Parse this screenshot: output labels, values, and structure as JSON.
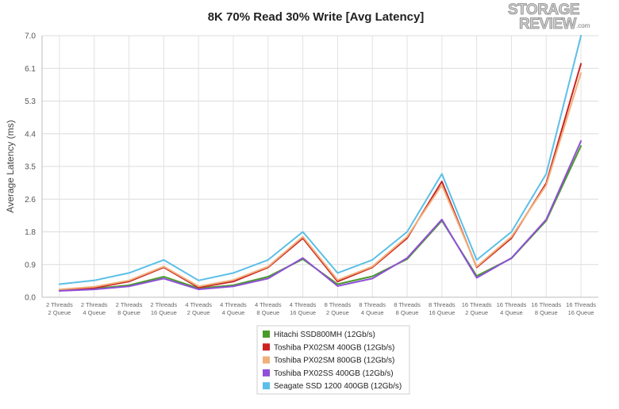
{
  "logo": {
    "line1": "STORAGE",
    "line2": "REVIEW",
    "suffix": ".com"
  },
  "chart_data": {
    "type": "line",
    "title": "8K 70% Read 30% Write [Avg Latency]",
    "xlabel": "",
    "ylabel": "Average Latency (ms)",
    "ylim": [
      0,
      7.0
    ],
    "yticks": [
      "0.0",
      "0.9",
      "1.8",
      "2.6",
      "3.5",
      "4.4",
      "5.3",
      "6.1",
      "7.0"
    ],
    "grid": true,
    "legend_position": "bottom-center",
    "categories": [
      [
        "2 Threads",
        "2 Queue"
      ],
      [
        "2 Threads",
        "4 Queue"
      ],
      [
        "2 Threads",
        "8 Queue"
      ],
      [
        "2 Threads",
        "16 Queue"
      ],
      [
        "4 Threads",
        "2 Queue"
      ],
      [
        "4 Threads",
        "4 Queue"
      ],
      [
        "4 Threads",
        "8 Queue"
      ],
      [
        "4 Threads",
        "16 Queue"
      ],
      [
        "8 Threads",
        "2 Queue"
      ],
      [
        "8 Threads",
        "4 Queue"
      ],
      [
        "8 Threads",
        "8 Queue"
      ],
      [
        "8 Threads",
        "16 Queue"
      ],
      [
        "16 Threads",
        "2 Queue"
      ],
      [
        "16 Threads",
        "4 Queue"
      ],
      [
        "16 Threads",
        "8 Queue"
      ],
      [
        "16 Threads",
        "16 Queue"
      ]
    ],
    "series": [
      {
        "name": "Hitachi SSD800MH (12Gb/s)",
        "color": "#4a9a2a",
        "values": [
          0.18,
          0.23,
          0.32,
          0.55,
          0.24,
          0.32,
          0.55,
          1.02,
          0.35,
          0.56,
          1.02,
          2.05,
          0.57,
          1.04,
          2.05,
          4.05
        ]
      },
      {
        "name": "Toshiba PX02SM 400GB (12Gb/s)",
        "color": "#cc2222",
        "values": [
          0.2,
          0.25,
          0.42,
          0.8,
          0.26,
          0.42,
          0.8,
          1.58,
          0.42,
          0.8,
          1.58,
          3.1,
          0.8,
          1.58,
          3.05,
          6.25
        ]
      },
      {
        "name": "Toshiba PX02SM 800GB (12Gb/s)",
        "color": "#f0b07a",
        "values": [
          0.21,
          0.28,
          0.45,
          0.82,
          0.29,
          0.46,
          0.82,
          1.62,
          0.46,
          0.82,
          1.62,
          3.0,
          0.82,
          1.62,
          3.0,
          6.0
        ]
      },
      {
        "name": "Toshiba PX02SS 400GB (12Gb/s)",
        "color": "#9050d8",
        "values": [
          0.17,
          0.21,
          0.29,
          0.5,
          0.21,
          0.29,
          0.5,
          1.05,
          0.3,
          0.5,
          1.05,
          2.08,
          0.52,
          1.05,
          2.08,
          4.18
        ]
      },
      {
        "name": "Seagate SSD 1200 400GB (12Gb/s)",
        "color": "#5bbfe8",
        "values": [
          0.35,
          0.45,
          0.65,
          1.0,
          0.45,
          0.65,
          1.0,
          1.75,
          0.65,
          1.0,
          1.75,
          3.3,
          1.0,
          1.75,
          3.3,
          7.0
        ]
      }
    ]
  }
}
